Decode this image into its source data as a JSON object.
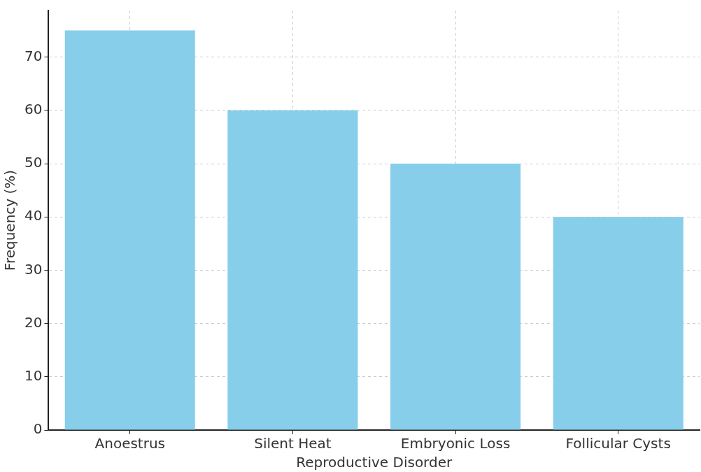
{
  "chart_data": {
    "type": "bar",
    "xlabel": "Reproductive Disorder",
    "ylabel": "Frequency (%)",
    "categories": [
      "Anoestrus",
      "Silent Heat",
      "Embryonic Loss",
      "Follicular Cysts"
    ],
    "values": [
      75,
      60,
      50,
      40
    ],
    "color": "#87ceeb",
    "ylim": [
      0,
      78.75
    ],
    "yticks": [
      0,
      10,
      20,
      30,
      40,
      50,
      60,
      70
    ],
    "grid": true
  }
}
